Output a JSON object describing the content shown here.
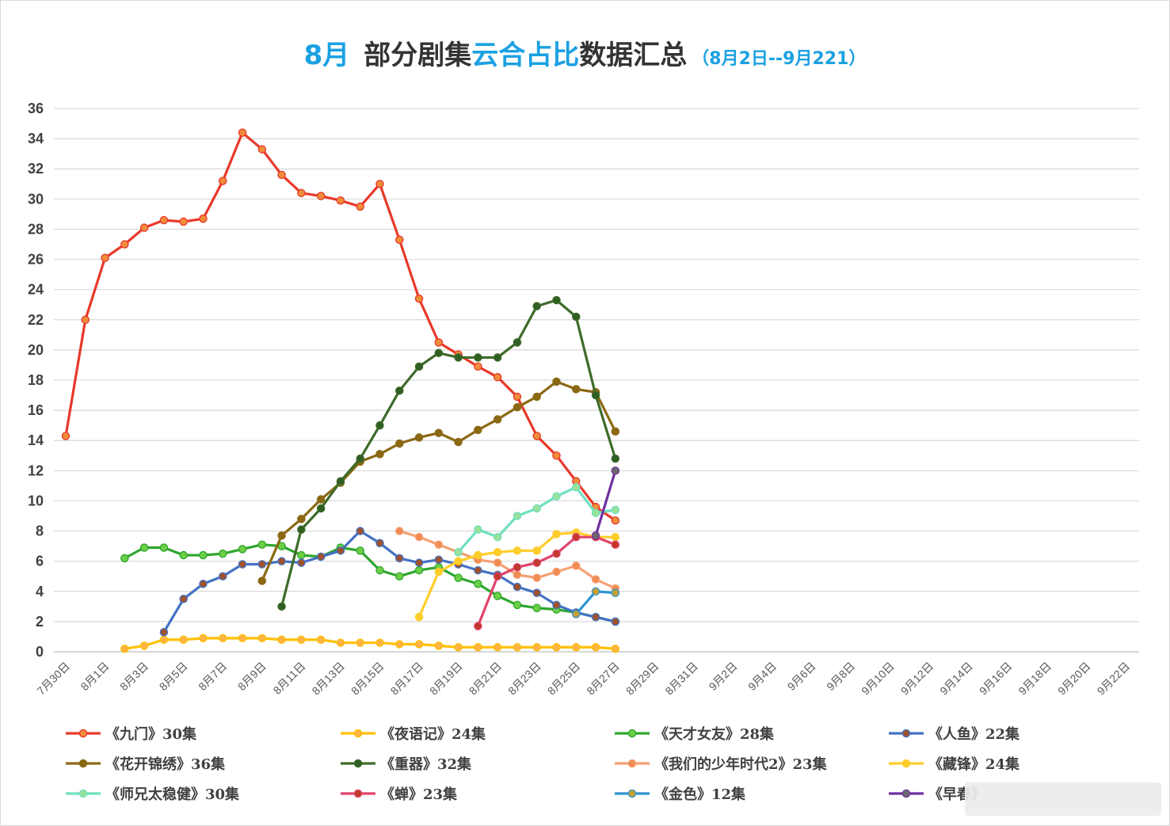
{
  "title": {
    "month": "8月",
    "part1": "部分剧集",
    "part2": "云合占比",
    "part3": "数据汇总",
    "subtitle": "（8月2日--9月221）"
  },
  "chart_data": {
    "type": "line",
    "ylim": [
      0,
      36
    ],
    "y_ticks": [
      0,
      2,
      4,
      6,
      8,
      10,
      12,
      14,
      16,
      18,
      20,
      22,
      24,
      26,
      28,
      30,
      32,
      34,
      36
    ],
    "x_tick_labels": [
      "7月30日",
      "8月1日",
      "8月3日",
      "8月5日",
      "8月7日",
      "8月9日",
      "8月11日",
      "8月13日",
      "8月15日",
      "8月17日",
      "8月19日",
      "8月21日",
      "8月23日",
      "8月25日",
      "8月27日",
      "8月29日",
      "8月31日",
      "9月2日",
      "9月4日",
      "9月6日",
      "9月8日",
      "9月10日",
      "9月12日",
      "9月14日",
      "9月16日",
      "9月18日",
      "9月20日",
      "9月22日"
    ],
    "grid": true,
    "legend_position": "bottom",
    "series": [
      {
        "name": "《九门》30集",
        "color": "#e8392a",
        "marker": "#f08c3a",
        "start": "7月30日",
        "values": [
          14.3,
          22.0,
          26.1,
          27.0,
          28.1,
          28.6,
          28.5,
          28.7,
          31.2,
          34.4,
          33.3,
          31.6,
          30.4,
          30.2,
          29.9,
          29.5,
          31.0,
          27.3,
          23.4,
          20.5,
          19.7,
          18.9,
          18.2,
          16.9,
          14.3,
          13.0,
          11.3,
          9.6,
          8.7
        ]
      },
      {
        "name": "《夜语记》24集",
        "color": "#ffc000",
        "marker": "#ffb347",
        "start": "8月2日",
        "values": [
          0.2,
          0.4,
          0.8,
          0.8,
          0.9,
          0.9,
          0.9,
          0.9,
          0.8,
          0.8,
          0.8,
          0.6,
          0.6,
          0.6,
          0.5,
          0.5,
          0.4,
          0.3,
          0.3,
          0.3,
          0.3,
          0.3,
          0.3,
          0.3,
          0.3,
          0.2
        ]
      },
      {
        "name": "《天才女友》28集",
        "color": "#2ea62e",
        "marker": "#6ccf47",
        "start": "8月2日",
        "values": [
          6.2,
          6.9,
          6.9,
          6.4,
          6.4,
          6.5,
          6.8,
          7.1,
          7.0,
          6.4,
          6.3,
          6.9,
          6.7,
          5.4,
          5.0,
          5.4,
          5.6,
          4.9,
          4.5,
          3.7,
          3.1,
          2.9,
          2.8,
          2.6,
          2.3,
          2.0
        ]
      },
      {
        "name": "《人鱼》22集",
        "color": "#4472c4",
        "marker": "#a0522d",
        "start": "8月4日",
        "values": [
          1.3,
          3.5,
          4.5,
          5.0,
          5.8,
          5.8,
          6.0,
          5.9,
          6.3,
          6.7,
          8.0,
          7.2,
          6.2,
          5.9,
          6.1,
          5.8,
          5.4,
          5.1,
          4.3,
          3.9,
          3.1,
          2.6,
          2.3,
          2.0
        ]
      },
      {
        "name": "《花开锦绣》36集",
        "color": "#8b6914",
        "marker": "#8b6914",
        "start": "8月9日",
        "values": [
          4.7,
          7.7,
          8.8,
          10.1,
          11.2,
          12.6,
          13.1,
          13.8,
          14.2,
          14.5,
          13.9,
          14.7,
          15.4,
          16.2,
          16.9,
          17.9,
          17.4,
          17.2,
          14.6
        ]
      },
      {
        "name": "《重器》32集",
        "color": "#3e6b2a",
        "marker": "#2f5f22",
        "start": "8月10日",
        "values": [
          3.0,
          8.1,
          9.5,
          11.3,
          12.8,
          15.0,
          17.3,
          18.9,
          19.8,
          19.5,
          19.5,
          19.5,
          20.5,
          22.9,
          23.3,
          22.2,
          17.0,
          12.8
        ]
      },
      {
        "name": "《我们的少年时代2》23集",
        "color": "#f4a072",
        "marker": "#f08c52",
        "start": "8月16日",
        "values": [
          8.0,
          7.6,
          7.1,
          6.6,
          6.1,
          5.9,
          5.1,
          4.9,
          5.3,
          5.7,
          4.8,
          4.2
        ]
      },
      {
        "name": "《藏锋》24集",
        "color": "#ffcd2a",
        "marker": "#ffcd2a",
        "start": "8月17日",
        "values": [
          2.3,
          5.3,
          6.0,
          6.4,
          6.6,
          6.7,
          6.7,
          7.8,
          7.9,
          7.6,
          7.6
        ]
      },
      {
        "name": "《师兄太稳健》30集",
        "color": "#6ee0c0",
        "marker": "#9ae29a",
        "start": "8月19日",
        "values": [
          6.6,
          8.1,
          7.6,
          9.0,
          9.5,
          10.3,
          10.9,
          9.2,
          9.4
        ]
      },
      {
        "name": "《蝉》23集",
        "color": "#e0446a",
        "marker": "#c0392b",
        "start": "8月20日",
        "values": [
          1.7,
          5.0,
          5.6,
          5.9,
          6.5,
          7.6,
          7.6,
          7.1
        ]
      },
      {
        "name": "《金色》12集",
        "color": "#2e95d3",
        "marker": "#c8a030",
        "start": "8月25日",
        "values": [
          2.5,
          4.0,
          3.9
        ]
      },
      {
        "name": "《早春》",
        "color": "#7030a0",
        "marker": "#6a6a6a",
        "start": "8月26日",
        "values": [
          7.7,
          12.0
        ]
      }
    ]
  }
}
